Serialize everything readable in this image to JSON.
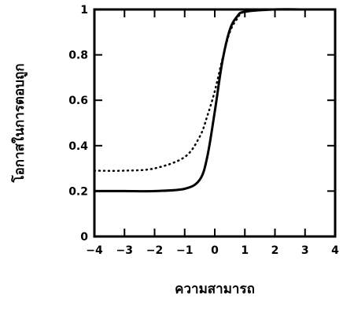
{
  "chart_data": {
    "type": "line",
    "xlabel": "ความสามารถ",
    "ylabel": "โอกาสในการตอบถูก",
    "xlim": [
      -4,
      4
    ],
    "ylim": [
      0,
      1
    ],
    "x_ticks": [
      "−4",
      "−3",
      "−2",
      "−1",
      "0",
      "1",
      "2",
      "3",
      "4"
    ],
    "y_ticks": [
      "0",
      "0.2",
      "0.4",
      "0.6",
      "0.8",
      "1"
    ],
    "grid": false,
    "series": [
      {
        "line_style": "solid",
        "color": "#000000",
        "x": [
          -4,
          -3,
          -2,
          -1,
          -0.5,
          -0.25,
          0,
          0.25,
          0.5,
          0.75,
          1,
          2,
          3,
          4
        ],
        "y": [
          0.2,
          0.2,
          0.2,
          0.21,
          0.25,
          0.35,
          0.55,
          0.77,
          0.91,
          0.97,
          0.99,
          1.0,
          1.0,
          1.0
        ]
      },
      {
        "line_style": "dotted",
        "color": "#000000",
        "x": [
          -4,
          -3,
          -2,
          -1,
          -0.5,
          -0.25,
          0,
          0.25,
          0.5,
          0.75,
          1,
          2,
          3,
          4
        ],
        "y": [
          0.29,
          0.29,
          0.3,
          0.35,
          0.44,
          0.53,
          0.64,
          0.78,
          0.9,
          0.96,
          0.99,
          1.0,
          1.0,
          1.0
        ]
      }
    ]
  }
}
